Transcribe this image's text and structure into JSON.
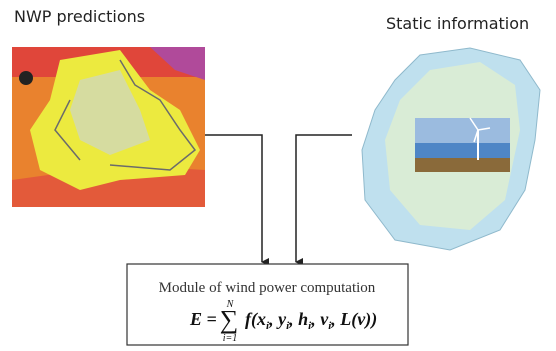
{
  "labels": {
    "left": "NWP predictions",
    "right": "Static information"
  },
  "module": {
    "title": "Module of wind power computation",
    "formula": {
      "lhs": "E =",
      "sum": "∑",
      "upper": "N",
      "lower": "i=1",
      "segments": [
        {
          "text": "f(x"
        },
        {
          "sub": "i"
        },
        {
          "text": ", y"
        },
        {
          "sub": "i"
        },
        {
          "text": ", h"
        },
        {
          "sub": "i"
        },
        {
          "text": ", v"
        },
        {
          "sub": "i"
        },
        {
          "text": ", L(v))"
        }
      ]
    }
  }
}
